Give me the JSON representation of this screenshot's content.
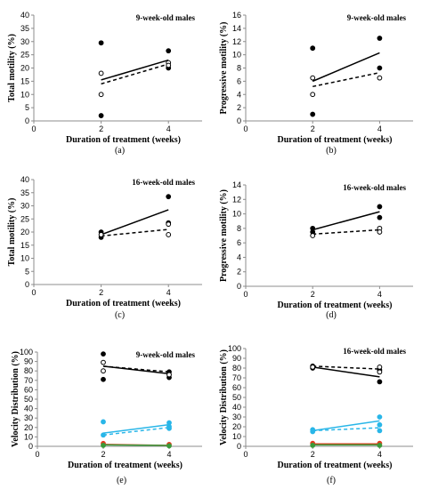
{
  "chart_data": [
    {
      "panel": "(a)",
      "type": "scatter",
      "title": "9-week-old males",
      "xlabel": "Duration of treatment (weeks)",
      "ylabel": "Total motility (%)",
      "xlim": [
        0,
        5
      ],
      "ylim": [
        0,
        40
      ],
      "xticks": [
        0,
        2,
        4
      ],
      "yticks": [
        0,
        5,
        10,
        15,
        20,
        25,
        30,
        35,
        40
      ],
      "points": [
        {
          "x": 2,
          "y": 29.5,
          "fill": "#000000",
          "stroke": "#000000"
        },
        {
          "x": 2,
          "y": 2,
          "fill": "#000000",
          "stroke": "#000000"
        },
        {
          "x": 2,
          "y": 18,
          "fill": "#ffffff",
          "stroke": "#000000"
        },
        {
          "x": 2,
          "y": 10,
          "fill": "#ffffff",
          "stroke": "#000000"
        },
        {
          "x": 4,
          "y": 26.5,
          "fill": "#000000",
          "stroke": "#000000"
        },
        {
          "x": 4,
          "y": 20,
          "fill": "#000000",
          "stroke": "#000000"
        },
        {
          "x": 4,
          "y": 22,
          "fill": "#ffffff",
          "stroke": "#000000"
        },
        {
          "x": 4,
          "y": 21,
          "fill": "#ffffff",
          "stroke": "#000000"
        }
      ],
      "lines": [
        {
          "x": [
            2,
            4
          ],
          "y": [
            15.5,
            23
          ],
          "color": "#000000",
          "dashed": false
        },
        {
          "x": [
            2,
            4
          ],
          "y": [
            14,
            21.5
          ],
          "color": "#000000",
          "dashed": true
        }
      ]
    },
    {
      "panel": "(b)",
      "type": "scatter",
      "title": "9-week-old males",
      "xlabel": "Duration of treatment (weeks)",
      "ylabel": "Progressive motility (%)",
      "xlim": [
        0,
        5
      ],
      "ylim": [
        0,
        16
      ],
      "xticks": [
        0,
        2,
        4
      ],
      "yticks": [
        0,
        2,
        4,
        6,
        8,
        10,
        12,
        14,
        16
      ],
      "points": [
        {
          "x": 2,
          "y": 11,
          "fill": "#000000",
          "stroke": "#000000"
        },
        {
          "x": 2,
          "y": 1,
          "fill": "#000000",
          "stroke": "#000000"
        },
        {
          "x": 2,
          "y": 6.5,
          "fill": "#ffffff",
          "stroke": "#000000"
        },
        {
          "x": 2,
          "y": 4,
          "fill": "#ffffff",
          "stroke": "#000000"
        },
        {
          "x": 4,
          "y": 12.5,
          "fill": "#000000",
          "stroke": "#000000"
        },
        {
          "x": 4,
          "y": 8,
          "fill": "#000000",
          "stroke": "#000000"
        },
        {
          "x": 4,
          "y": 6.5,
          "fill": "#ffffff",
          "stroke": "#000000"
        }
      ],
      "lines": [
        {
          "x": [
            2,
            4
          ],
          "y": [
            6,
            10.3
          ],
          "color": "#000000",
          "dashed": false
        },
        {
          "x": [
            2,
            4
          ],
          "y": [
            5.2,
            7.3
          ],
          "color": "#000000",
          "dashed": true
        }
      ]
    },
    {
      "panel": "(c)",
      "type": "scatter",
      "title": "16-week-old males",
      "xlabel": "Duration of treatment (weeks)",
      "ylabel": "Total motility (%)",
      "xlim": [
        0,
        5
      ],
      "ylim": [
        0,
        40
      ],
      "xticks": [
        0,
        2,
        4
      ],
      "yticks": [
        0,
        5,
        10,
        15,
        20,
        25,
        30,
        35,
        40
      ],
      "points": [
        {
          "x": 2,
          "y": 20,
          "fill": "#000000",
          "stroke": "#000000"
        },
        {
          "x": 2,
          "y": 18,
          "fill": "#000000",
          "stroke": "#000000"
        },
        {
          "x": 2,
          "y": 19,
          "fill": "#ffffff",
          "stroke": "#000000"
        },
        {
          "x": 4,
          "y": 33.5,
          "fill": "#000000",
          "stroke": "#000000"
        },
        {
          "x": 4,
          "y": 23.5,
          "fill": "#000000",
          "stroke": "#000000"
        },
        {
          "x": 4,
          "y": 23,
          "fill": "#ffffff",
          "stroke": "#000000"
        },
        {
          "x": 4,
          "y": 19,
          "fill": "#ffffff",
          "stroke": "#000000"
        }
      ],
      "lines": [
        {
          "x": [
            2,
            4
          ],
          "y": [
            19,
            28.5
          ],
          "color": "#000000",
          "dashed": false
        },
        {
          "x": [
            2,
            4
          ],
          "y": [
            18.5,
            21
          ],
          "color": "#000000",
          "dashed": true
        }
      ]
    },
    {
      "panel": "(d)",
      "type": "scatter",
      "title": "16-week-old males",
      "xlabel": "Duration of treatment (weeks)",
      "ylabel": "Progressive motility (%)",
      "xlim": [
        0,
        5
      ],
      "ylim": [
        0,
        14
      ],
      "xticks": [
        0,
        2,
        4
      ],
      "yticks": [
        0,
        2,
        4,
        6,
        8,
        10,
        12,
        14
      ],
      "points": [
        {
          "x": 2,
          "y": 8,
          "fill": "#000000",
          "stroke": "#000000"
        },
        {
          "x": 2,
          "y": 7.5,
          "fill": "#000000",
          "stroke": "#000000"
        },
        {
          "x": 2,
          "y": 7,
          "fill": "#ffffff",
          "stroke": "#000000"
        },
        {
          "x": 4,
          "y": 11,
          "fill": "#000000",
          "stroke": "#000000"
        },
        {
          "x": 4,
          "y": 9.5,
          "fill": "#000000",
          "stroke": "#000000"
        },
        {
          "x": 4,
          "y": 8,
          "fill": "#ffffff",
          "stroke": "#000000"
        },
        {
          "x": 4,
          "y": 7.5,
          "fill": "#ffffff",
          "stroke": "#000000"
        }
      ],
      "lines": [
        {
          "x": [
            2,
            4
          ],
          "y": [
            7.8,
            10.3
          ],
          "color": "#000000",
          "dashed": false
        },
        {
          "x": [
            2,
            4
          ],
          "y": [
            7.2,
            7.8
          ],
          "color": "#000000",
          "dashed": true
        }
      ]
    },
    {
      "panel": "(e)",
      "type": "scatter",
      "title": "9-week-old males",
      "xlabel": "Duration of treatment (weeks)",
      "ylabel": "Velocity Distribution (%)",
      "xlim": [
        0,
        5
      ],
      "ylim": [
        0,
        100
      ],
      "xticks": [
        0,
        2,
        4
      ],
      "yticks": [
        0,
        10,
        20,
        30,
        40,
        50,
        60,
        70,
        80,
        90,
        100
      ],
      "points": [
        {
          "x": 2,
          "y": 98,
          "fill": "#000000",
          "stroke": "#000000"
        },
        {
          "x": 2,
          "y": 71,
          "fill": "#000000",
          "stroke": "#000000"
        },
        {
          "x": 2,
          "y": 89,
          "fill": "#ffffff",
          "stroke": "#000000"
        },
        {
          "x": 2,
          "y": 80,
          "fill": "#ffffff",
          "stroke": "#000000"
        },
        {
          "x": 4,
          "y": 79,
          "fill": "#000000",
          "stroke": "#000000"
        },
        {
          "x": 4,
          "y": 73,
          "fill": "#000000",
          "stroke": "#000000"
        },
        {
          "x": 4,
          "y": 76,
          "fill": "#ffffff",
          "stroke": "#000000"
        },
        {
          "x": 2,
          "y": 26,
          "fill": "#29b6e8",
          "stroke": "#29b6e8"
        },
        {
          "x": 2,
          "y": 12,
          "fill": "#29b6e8",
          "stroke": "#29b6e8"
        },
        {
          "x": 4,
          "y": 25,
          "fill": "#29b6e8",
          "stroke": "#29b6e8"
        },
        {
          "x": 4,
          "y": 21,
          "fill": "#29b6e8",
          "stroke": "#29b6e8"
        },
        {
          "x": 4,
          "y": 19,
          "fill": "#29b6e8",
          "stroke": "#29b6e8"
        },
        {
          "x": 2,
          "y": 3,
          "fill": "#e03c1e",
          "stroke": "#e03c1e"
        },
        {
          "x": 2,
          "y": 1,
          "fill": "#3a9a3a",
          "stroke": "#3a9a3a"
        },
        {
          "x": 4,
          "y": 2,
          "fill": "#e03c1e",
          "stroke": "#e03c1e"
        },
        {
          "x": 4,
          "y": 0.5,
          "fill": "#3a9a3a",
          "stroke": "#3a9a3a"
        }
      ],
      "lines": [
        {
          "x": [
            2,
            4
          ],
          "y": [
            85,
            77
          ],
          "color": "#000000",
          "dashed": false
        },
        {
          "x": [
            2,
            4
          ],
          "y": [
            85,
            79
          ],
          "color": "#000000",
          "dashed": true
        },
        {
          "x": [
            2,
            4
          ],
          "y": [
            14,
            23
          ],
          "color": "#29b6e8",
          "dashed": false
        },
        {
          "x": [
            2,
            4
          ],
          "y": [
            12,
            20
          ],
          "color": "#29b6e8",
          "dashed": true
        },
        {
          "x": [
            2,
            4
          ],
          "y": [
            2,
            1
          ],
          "color": "#e03c1e",
          "dashed": false
        },
        {
          "x": [
            2,
            4
          ],
          "y": [
            1.5,
            1
          ],
          "color": "#3a9a3a",
          "dashed": false
        }
      ]
    },
    {
      "panel": "(f)",
      "type": "scatter",
      "title": "16-week-old males",
      "xlabel": "Duration of treatment (weeks)",
      "ylabel": "Velocity Distribution (%)",
      "xlim": [
        0,
        5
      ],
      "ylim": [
        0,
        100
      ],
      "xticks": [
        0,
        2,
        4
      ],
      "yticks": [
        0,
        10,
        20,
        30,
        40,
        50,
        60,
        70,
        80,
        90,
        100
      ],
      "points": [
        {
          "x": 2,
          "y": 82,
          "fill": "#000000",
          "stroke": "#000000"
        },
        {
          "x": 2,
          "y": 80,
          "fill": "#000000",
          "stroke": "#000000"
        },
        {
          "x": 2,
          "y": 81,
          "fill": "#ffffff",
          "stroke": "#000000"
        },
        {
          "x": 4,
          "y": 78,
          "fill": "#000000",
          "stroke": "#000000"
        },
        {
          "x": 4,
          "y": 66,
          "fill": "#000000",
          "stroke": "#000000"
        },
        {
          "x": 4,
          "y": 81,
          "fill": "#ffffff",
          "stroke": "#000000"
        },
        {
          "x": 4,
          "y": 76,
          "fill": "#ffffff",
          "stroke": "#000000"
        },
        {
          "x": 2,
          "y": 17,
          "fill": "#29b6e8",
          "stroke": "#29b6e8"
        },
        {
          "x": 2,
          "y": 15,
          "fill": "#29b6e8",
          "stroke": "#29b6e8"
        },
        {
          "x": 4,
          "y": 30,
          "fill": "#29b6e8",
          "stroke": "#29b6e8"
        },
        {
          "x": 4,
          "y": 22,
          "fill": "#29b6e8",
          "stroke": "#29b6e8"
        },
        {
          "x": 4,
          "y": 16,
          "fill": "#29b6e8",
          "stroke": "#29b6e8"
        },
        {
          "x": 2,
          "y": 3,
          "fill": "#e03c1e",
          "stroke": "#e03c1e"
        },
        {
          "x": 2,
          "y": 1,
          "fill": "#3a9a3a",
          "stroke": "#3a9a3a"
        },
        {
          "x": 4,
          "y": 3,
          "fill": "#e03c1e",
          "stroke": "#e03c1e"
        },
        {
          "x": 4,
          "y": 1,
          "fill": "#3a9a3a",
          "stroke": "#3a9a3a"
        }
      ],
      "lines": [
        {
          "x": [
            2,
            4
          ],
          "y": [
            81,
            71
          ],
          "color": "#000000",
          "dashed": false
        },
        {
          "x": [
            2,
            4
          ],
          "y": [
            82,
            79
          ],
          "color": "#000000",
          "dashed": true
        },
        {
          "x": [
            2,
            4
          ],
          "y": [
            16,
            26
          ],
          "color": "#29b6e8",
          "dashed": false
        },
        {
          "x": [
            2,
            4
          ],
          "y": [
            16,
            19
          ],
          "color": "#29b6e8",
          "dashed": true
        },
        {
          "x": [
            2,
            4
          ],
          "y": [
            2.5,
            2.5
          ],
          "color": "#e03c1e",
          "dashed": false
        },
        {
          "x": [
            2,
            4
          ],
          "y": [
            1.5,
            1.5
          ],
          "color": "#3a9a3a",
          "dashed": false
        }
      ]
    }
  ]
}
